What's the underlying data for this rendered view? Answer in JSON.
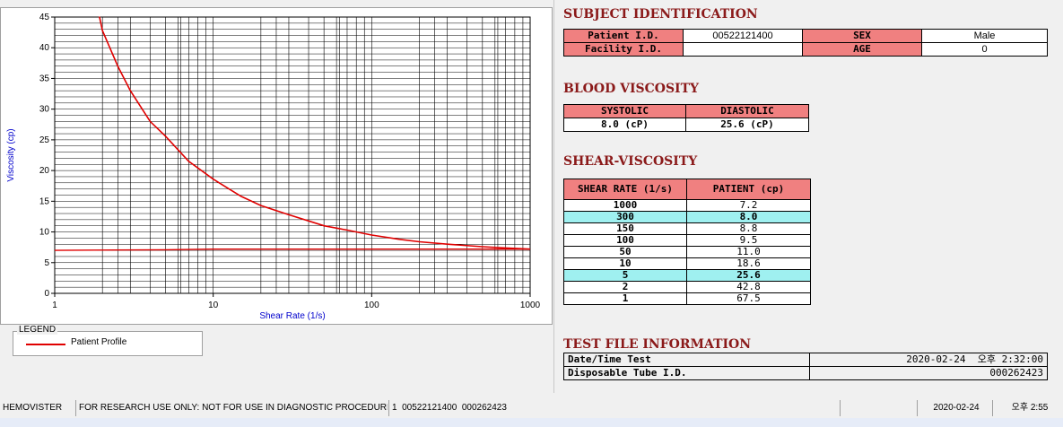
{
  "chart_data": {
    "type": "line",
    "xscale": "log",
    "xlim": [
      1,
      1000
    ],
    "ylim": [
      0,
      45
    ],
    "xlabel": "Shear Rate (1/s)",
    "ylabel": "Viscosity (cp)",
    "xticks": [
      1,
      10,
      100,
      1000
    ],
    "yticks": [
      0,
      5,
      10,
      15,
      20,
      25,
      30,
      35,
      40,
      45
    ],
    "grid": true,
    "series": [
      {
        "name": "Patient Profile",
        "color": "#e00000",
        "x": [
          1.9,
          2,
          2.5,
          3,
          4,
          5,
          7,
          10,
          15,
          20,
          30,
          50,
          70,
          100,
          150,
          200,
          300,
          500,
          700,
          1000
        ],
        "y": [
          45.5,
          42.8,
          37.0,
          33.0,
          28.0,
          25.6,
          21.5,
          18.6,
          15.8,
          14.3,
          12.8,
          11.0,
          10.3,
          9.5,
          8.8,
          8.4,
          8.0,
          7.6,
          7.4,
          7.2
        ]
      },
      {
        "name": "",
        "color": "#e00000",
        "x": [
          1,
          5,
          10,
          100,
          1000
        ],
        "y": [
          7.0,
          7.1,
          7.2,
          7.2,
          7.2
        ]
      }
    ]
  },
  "legend": {
    "title": "LEGEND",
    "items": [
      "Patient Profile"
    ]
  },
  "subject": {
    "title": "SUBJECT IDENTIFICATION",
    "patient_id_label": "Patient I.D.",
    "patient_id": "00522121400",
    "sex_label": "SEX",
    "sex": "Male",
    "facility_id_label": "Facility I.D.",
    "facility_id": "",
    "age_label": "AGE",
    "age": "0"
  },
  "blood": {
    "title": "BLOOD VISCOSITY",
    "systolic_label": "SYSTOLIC",
    "systolic": "8.0 (cP)",
    "diastolic_label": "DIASTOLIC",
    "diastolic": "25.6 (cP)"
  },
  "shear": {
    "title": "SHEAR-VISCOSITY",
    "col1": "SHEAR RATE (1/s)",
    "col2": "PATIENT (cp)",
    "rows": [
      {
        "rate": "1000",
        "val": "7.2",
        "hl": false
      },
      {
        "rate": "300",
        "val": "8.0",
        "hl": true
      },
      {
        "rate": "150",
        "val": "8.8",
        "hl": false
      },
      {
        "rate": "100",
        "val": "9.5",
        "hl": false
      },
      {
        "rate": "50",
        "val": "11.0",
        "hl": false
      },
      {
        "rate": "10",
        "val": "18.6",
        "hl": false
      },
      {
        "rate": "5",
        "val": "25.6",
        "hl": true
      },
      {
        "rate": "2",
        "val": "42.8",
        "hl": false
      },
      {
        "rate": "1",
        "val": "67.5",
        "hl": false
      }
    ]
  },
  "testfile": {
    "title": "TEST FILE INFORMATION",
    "datetime_label": "Date/Time Test",
    "datetime": "2020-02-24  오후 2:32:00",
    "tube_label": "Disposable Tube I.D.",
    "tube": "000262423"
  },
  "status": {
    "app": "HEMOVISTER",
    "notice": "FOR RESEARCH USE ONLY: NOT FOR USE IN DIAGNOSTIC PROCEDURES",
    "record": "1  00522121400  000262423",
    "date": "2020-02-24",
    "time": "오후 2:55"
  }
}
